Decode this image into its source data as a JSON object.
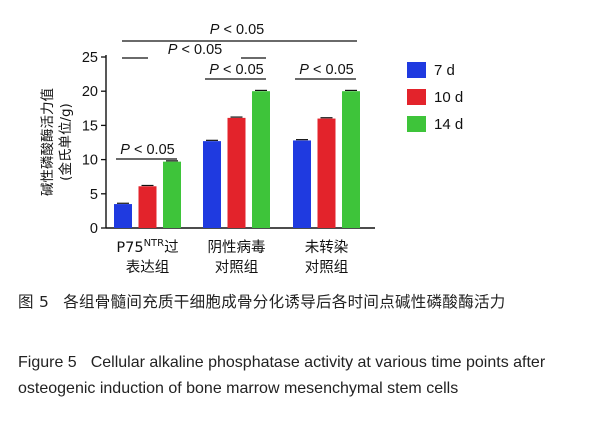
{
  "chart_data": {
    "type": "bar",
    "categories": [
      {
        "line1": "P75",
        "sup": "NTR",
        "line1_rest": "过",
        "line2": "表达组"
      },
      {
        "line1": "阴性病毒",
        "line2": "对照组"
      },
      {
        "line1": "未转染",
        "line2": "对照组"
      }
    ],
    "series": [
      {
        "name": "7 d",
        "color": "#1f3ae0",
        "values": [
          3.5,
          12.7,
          12.8
        ]
      },
      {
        "name": "10 d",
        "color": "#e3232b",
        "values": [
          6.1,
          16.1,
          16.0
        ]
      },
      {
        "name": "14 d",
        "color": "#3ec43a",
        "values": [
          9.7,
          20.0,
          20.0
        ]
      }
    ],
    "ylabel_line1": "碱性磷酸酶活力值",
    "ylabel_line2": "(金氏单位/g)",
    "ylim": [
      0,
      25
    ],
    "yticks": [
      "0",
      "5",
      "10",
      "15",
      "20",
      "25"
    ],
    "annotations": {
      "within_group": [
        "P < 0.05",
        "P < 0.05",
        "P < 0.05"
      ],
      "between_groups": [
        "P < 0.05",
        "P < 0.05"
      ]
    },
    "legend_position": "right"
  },
  "caption": {
    "cn_label": "图 5",
    "cn_text": "各组骨髓间充质干细胞成骨分化诱导后各时间点碱性磷酸酶活力",
    "en_label": "Figure 5",
    "en_text": "Cellular alkaline phosphatase activity at various time points after osteogenic induction of bone marrow mesenchymal stem cells"
  }
}
